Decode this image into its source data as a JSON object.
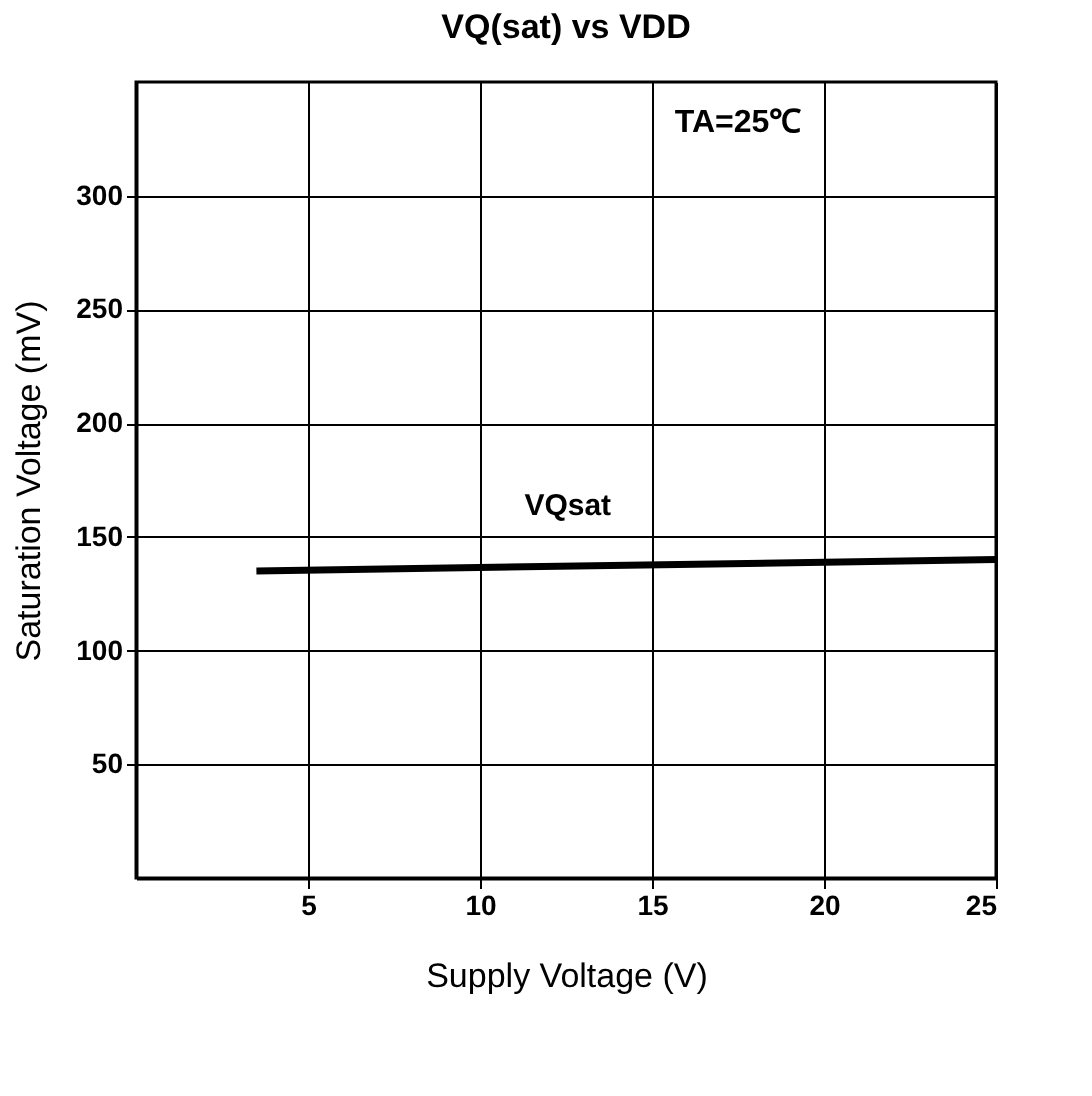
{
  "chart_data": {
    "type": "line",
    "title": "VQ(sat) vs VDD",
    "xlabel": "Supply Voltage (V)",
    "ylabel": "Saturation Voltage (mV)",
    "series": [
      {
        "name": "VQsat",
        "color": "#000000",
        "x": [
          3.5,
          25
        ],
        "values": [
          135,
          140
        ]
      }
    ],
    "xlim": [
      0,
      25
    ],
    "xticks": [
      5,
      10,
      15,
      20,
      25
    ],
    "ylim": [
      0,
      350
    ],
    "yticks": [
      50,
      100,
      150,
      200,
      250,
      300
    ],
    "grid": true,
    "marker": "none",
    "line_style": "solid",
    "annotations": [
      "TA=25℃"
    ]
  }
}
